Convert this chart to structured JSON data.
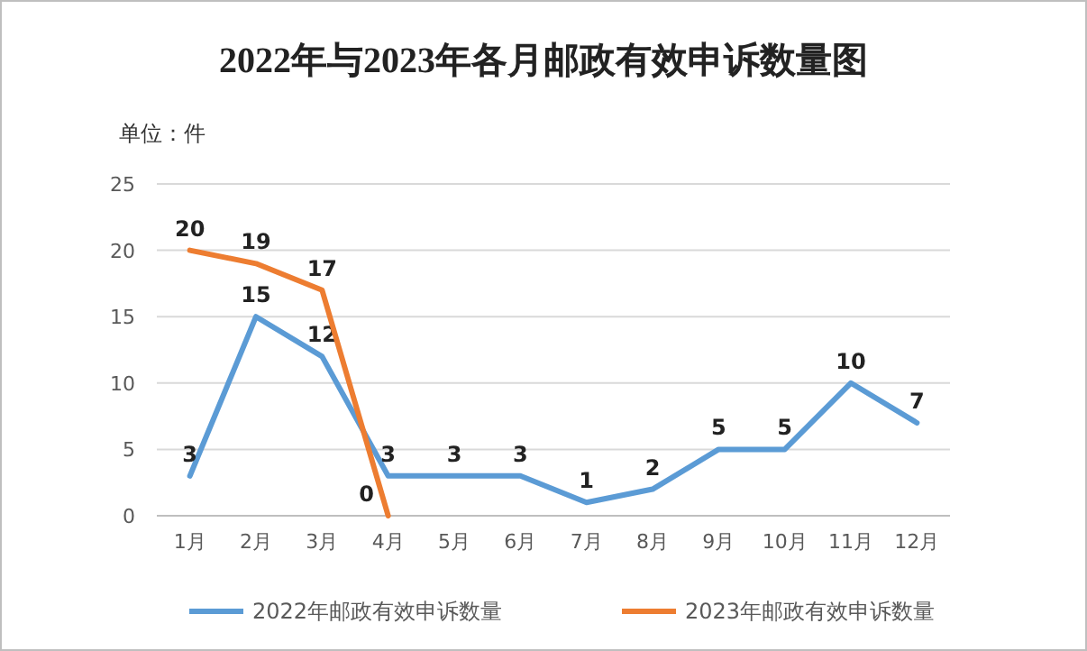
{
  "chart_data": {
    "type": "line",
    "title": "2022年与2023年各月邮政有效申诉数量图",
    "annotations": [
      "单位：件"
    ],
    "categories": [
      "1月",
      "2月",
      "3月",
      "4月",
      "5月",
      "6月",
      "7月",
      "8月",
      "9月",
      "10月",
      "11月",
      "12月"
    ],
    "series": [
      {
        "name": "2022年邮政有效申诉数量",
        "color": "#5b9bd5",
        "values": [
          3,
          15,
          12,
          3,
          3,
          3,
          1,
          2,
          5,
          5,
          10,
          7
        ]
      },
      {
        "name": "2023年邮政有效申诉数量",
        "color": "#ed7d31",
        "values": [
          20,
          19,
          17,
          0,
          null,
          null,
          null,
          null,
          null,
          null,
          null,
          null
        ]
      }
    ],
    "ylim": [
      0,
      25
    ],
    "yticks": [
      0,
      5,
      10,
      15,
      20,
      25
    ],
    "grid": "y",
    "legend": "bottom",
    "data_labels": true,
    "marker": "none",
    "line_style": "solid"
  }
}
